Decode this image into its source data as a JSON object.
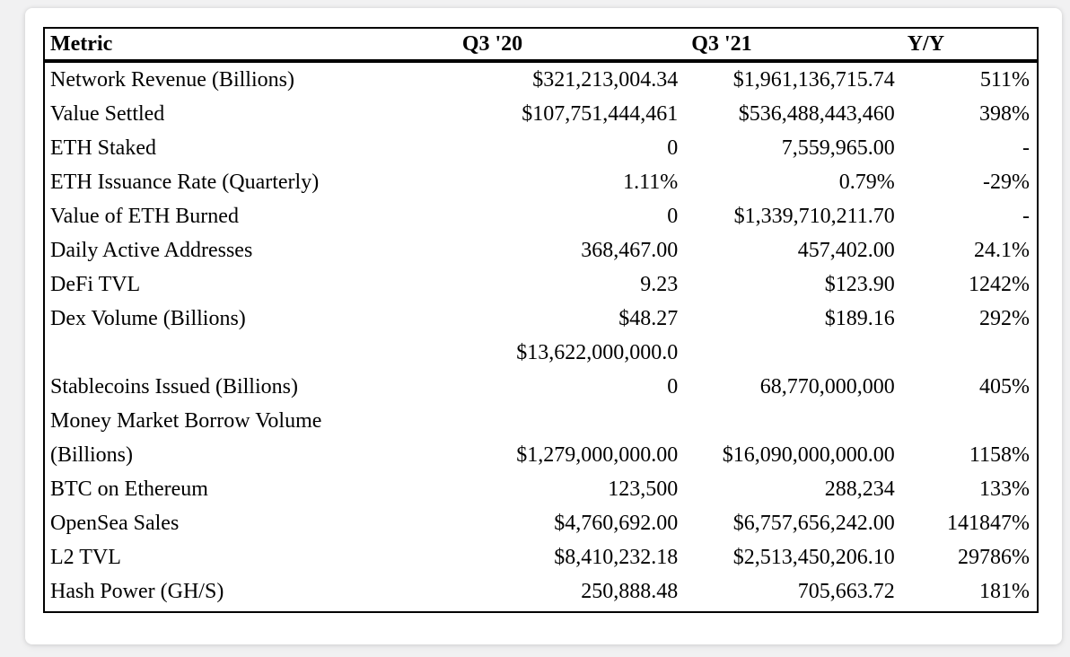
{
  "page": {
    "background_color": "#f1f1f2",
    "card_color": "#ffffff",
    "border_color": "#000000",
    "text_color": "#000000"
  },
  "table": {
    "columns": [
      {
        "key": "metric",
        "label": "Metric",
        "align": "left"
      },
      {
        "key": "q3_20",
        "label": "Q3 '20",
        "align": "right"
      },
      {
        "key": "q3_21",
        "label": "Q3 '21",
        "align": "right"
      },
      {
        "key": "yy",
        "label": "Y/Y",
        "align": "right"
      }
    ],
    "rows": [
      {
        "metric": "Network Revenue (Billions)",
        "q3_20": "$321,213,004.34",
        "q3_21": "$1,961,136,715.74",
        "yy": "511%"
      },
      {
        "metric": "Value Settled",
        "q3_20": "$107,751,444,461",
        "q3_21": "$536,488,443,460",
        "yy": "398%"
      },
      {
        "metric": "ETH Staked",
        "q3_20": "0",
        "q3_21": "7,559,965.00",
        "yy": "-"
      },
      {
        "metric": "ETH Issuance Rate (Quarterly)",
        "q3_20": "1.11%",
        "q3_21": "0.79%",
        "yy": "-29%"
      },
      {
        "metric": "Value of ETH Burned",
        "q3_20": "0",
        "q3_21": "$1,339,710,211.70",
        "yy": "-"
      },
      {
        "metric": "Daily Active Addresses",
        "q3_20": "368,467.00",
        "q3_21": "457,402.00",
        "yy": "24.1%"
      },
      {
        "metric": "DeFi TVL",
        "q3_20": "9.23",
        "q3_21": "$123.90",
        "yy": "1242%"
      },
      {
        "metric": "Dex Volume (Billions)",
        "q3_20": "$48.27",
        "q3_21": "$189.16",
        "yy": "292%"
      },
      {
        "metric": "Stablecoins Issued (Billions)",
        "q3_20": "$13,622,000,000.0\n0",
        "q3_21": "68,770,000,000",
        "yy": "405%"
      },
      {
        "metric": "Money Market Borrow Volume\n(Billions)",
        "q3_20": "$1,279,000,000.00",
        "q3_21": "$16,090,000,000.00",
        "yy": "1158%"
      },
      {
        "metric": "BTC on Ethereum",
        "q3_20": "123,500",
        "q3_21": "288,234",
        "yy": "133%"
      },
      {
        "metric": "OpenSea Sales",
        "q3_20": "$4,760,692.00",
        "q3_21": "$6,757,656,242.00",
        "yy": "141847%"
      },
      {
        "metric": "L2 TVL",
        "q3_20": "$8,410,232.18",
        "q3_21": "$2,513,450,206.10",
        "yy": "29786%"
      },
      {
        "metric": "Hash Power (GH/S)",
        "q3_20": "250,888.48",
        "q3_21": "705,663.72",
        "yy": "181%"
      }
    ]
  }
}
